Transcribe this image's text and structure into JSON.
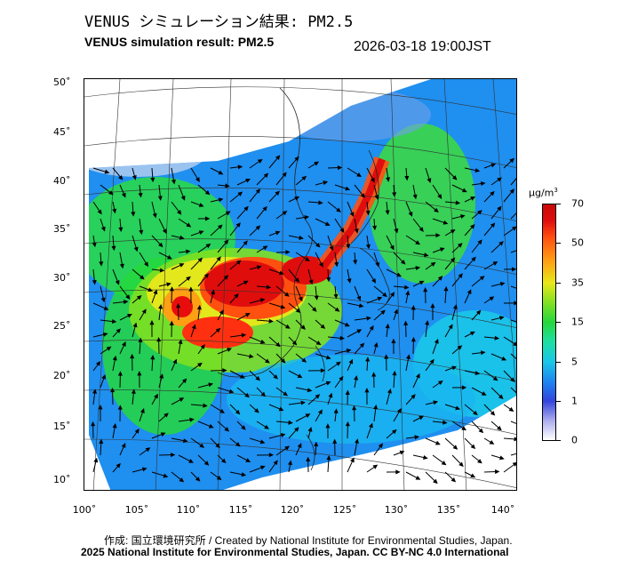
{
  "header": {
    "title_jp": "VENUS シミュレーション結果: PM2.5",
    "title_en": "VENUS simulation result: PM2.5",
    "timestamp": "2026-03-18 19:00JST"
  },
  "map": {
    "lat_labels": [
      "50˚",
      "45˚",
      "40˚",
      "35˚",
      "30˚",
      "25˚",
      "20˚",
      "15˚",
      "10˚"
    ],
    "lon_labels": [
      "100˚",
      "105˚",
      "110˚",
      "115˚",
      "120˚",
      "125˚",
      "130˚",
      "135˚",
      "140˚"
    ],
    "field": "PM2.5 concentration",
    "overlay": "wind vectors"
  },
  "colorbar": {
    "unit_text": "µg/m",
    "unit_sup": "3",
    "ticks": [
      "70",
      "50",
      "35",
      "15",
      "5",
      "1",
      "0"
    ],
    "colors": [
      "#ffffff",
      "#3344dd",
      "#19c7e8",
      "#26d83c",
      "#e8e81a",
      "#ff5010",
      "#c80808"
    ]
  },
  "footer": {
    "credit_jp_en": "作成: 国立環境研究所 / Created by National Institute for Environmental Studies, Japan.",
    "copyright": "2025 National Institute for Environmental Studies, Japan. CC BY-NC 4.0 International"
  }
}
